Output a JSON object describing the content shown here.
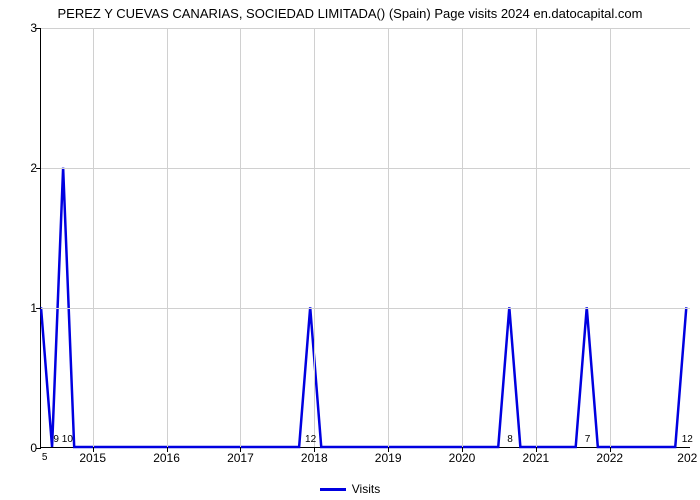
{
  "chart": {
    "type": "line",
    "title": "PEREZ Y CUEVAS CANARIAS, SOCIEDAD LIMITADA() (Spain) Page visits 2024 en.datocapital.com",
    "title_fontsize": 13,
    "background_color": "#ffffff",
    "grid_color": "#d0d0d0",
    "axis_color": "#000000",
    "line_color": "#0000e0",
    "line_width": 2.5,
    "ylim": [
      0,
      3
    ],
    "ytick_step": 1,
    "yticks": [
      0,
      1,
      2,
      3
    ],
    "xlim": [
      2014.3,
      2023.1
    ],
    "xticks_major": [
      2015,
      2016,
      2017,
      2018,
      2019,
      2020,
      2021,
      2022
    ],
    "xtick_minor_left": {
      "pos": 2014.35,
      "label": "5"
    },
    "xtick_edge_right": {
      "pos": 2023.05,
      "label": "202"
    },
    "label_fontsize": 12,
    "minor_fontsize": 10,
    "data_points": [
      {
        "x": 2014.3,
        "y": 1.0
      },
      {
        "x": 2014.45,
        "y": 0.0
      },
      {
        "x": 2014.6,
        "y": 2.0
      },
      {
        "x": 2014.75,
        "y": 0.0
      },
      {
        "x": 2017.8,
        "y": 0.0
      },
      {
        "x": 2017.95,
        "y": 1.0
      },
      {
        "x": 2018.1,
        "y": 0.0
      },
      {
        "x": 2020.5,
        "y": 0.0
      },
      {
        "x": 2020.65,
        "y": 1.0
      },
      {
        "x": 2020.8,
        "y": 0.0
      },
      {
        "x": 2021.55,
        "y": 0.0
      },
      {
        "x": 2021.7,
        "y": 1.0
      },
      {
        "x": 2021.85,
        "y": 0.0
      },
      {
        "x": 2022.9,
        "y": 0.0
      },
      {
        "x": 2023.05,
        "y": 1.0
      }
    ],
    "peak_labels": [
      {
        "x": 2014.6,
        "label": "9  10",
        "offset_y": -2
      },
      {
        "x": 2017.95,
        "label": "12",
        "offset_y": -2
      },
      {
        "x": 2020.65,
        "label": "8",
        "offset_y": -2
      },
      {
        "x": 2021.7,
        "label": "7",
        "offset_y": -2
      },
      {
        "x": 2023.05,
        "label": "12",
        "offset_y": -2
      }
    ],
    "legend": {
      "label": "Visits",
      "color": "#0000e0"
    }
  }
}
